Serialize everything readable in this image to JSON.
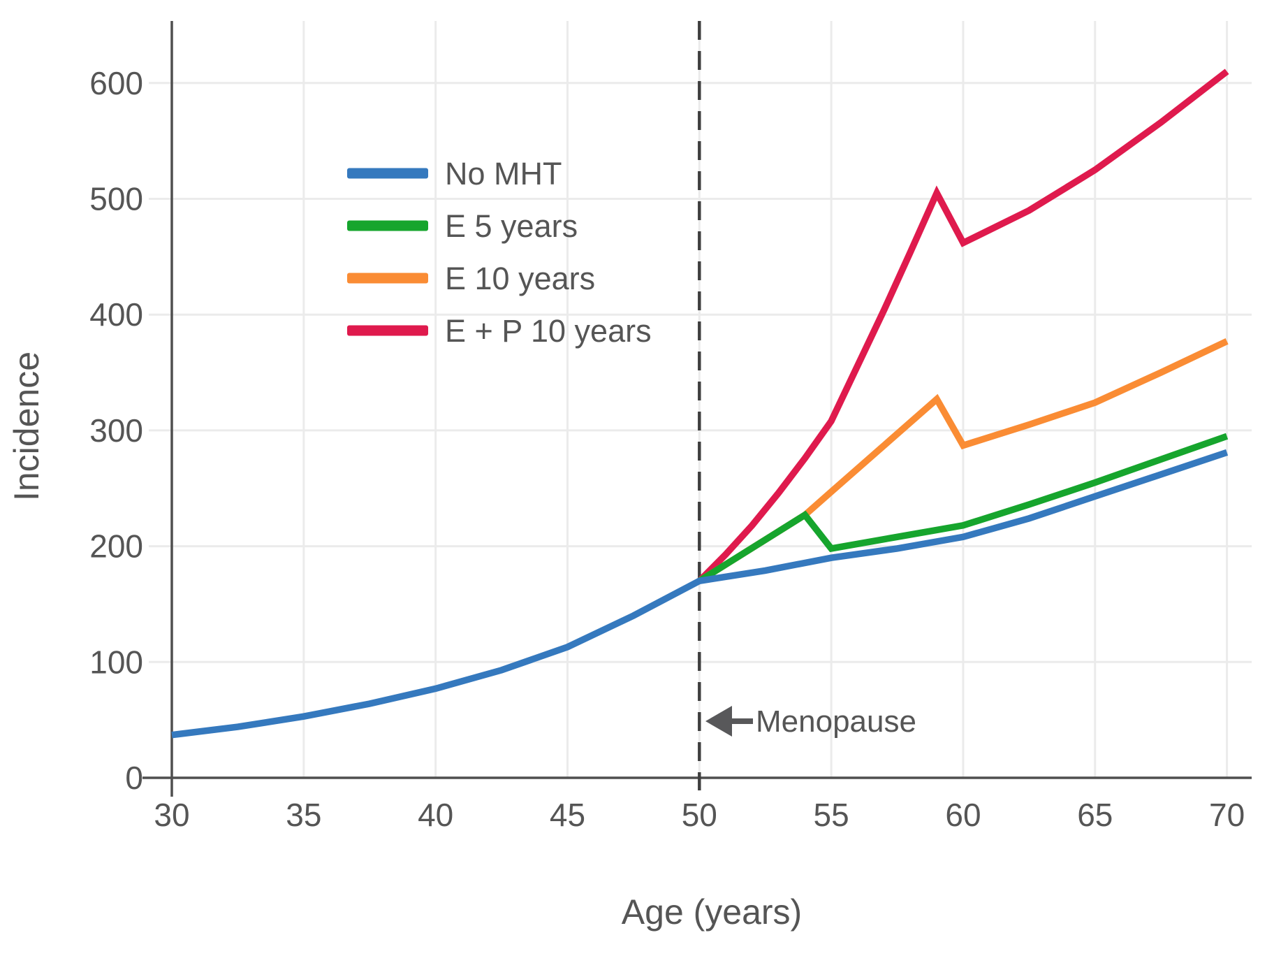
{
  "chart_data": {
    "type": "line",
    "title": "",
    "xlabel": "Age (years)",
    "ylabel": "Incidence",
    "x_ticks": [
      30,
      35,
      40,
      45,
      50,
      55,
      60,
      65,
      70
    ],
    "y_ticks": [
      0,
      100,
      200,
      300,
      400,
      500,
      600
    ],
    "xlim": [
      30,
      70
    ],
    "ylim": [
      0,
      654
    ],
    "grid": true,
    "legend_position": "upper-left",
    "annotation": {
      "label": "Menopause",
      "x": 50,
      "arrow": "left"
    },
    "series": [
      {
        "name": "No MHT",
        "color": "#3579be",
        "points": [
          [
            30,
            37
          ],
          [
            32.5,
            44
          ],
          [
            35,
            53
          ],
          [
            37.5,
            64
          ],
          [
            40,
            77
          ],
          [
            42.5,
            93
          ],
          [
            45,
            113
          ],
          [
            47.5,
            140
          ],
          [
            50,
            170
          ],
          [
            52.5,
            179
          ],
          [
            55,
            190
          ],
          [
            57.5,
            198
          ],
          [
            60,
            208
          ],
          [
            62.5,
            224
          ],
          [
            65,
            243
          ],
          [
            67.5,
            262
          ],
          [
            70,
            281
          ]
        ]
      },
      {
        "name": "E 5 years",
        "color": "#16a52d",
        "points": [
          [
            50,
            170
          ],
          [
            54,
            227
          ],
          [
            55,
            198
          ],
          [
            57.5,
            208
          ],
          [
            60,
            218
          ],
          [
            62.5,
            236
          ],
          [
            65,
            255
          ],
          [
            67.5,
            275
          ],
          [
            70,
            295
          ]
        ]
      },
      {
        "name": "E 10 years",
        "color": "#fa8c34",
        "points": [
          [
            50,
            170
          ],
          [
            54,
            227
          ],
          [
            55,
            247
          ],
          [
            57,
            287
          ],
          [
            59,
            327
          ],
          [
            60,
            287
          ],
          [
            62.5,
            305
          ],
          [
            65,
            324
          ],
          [
            67.5,
            350
          ],
          [
            70,
            377
          ]
        ]
      },
      {
        "name": "E + P 10 years",
        "color": "#df1a4d",
        "points": [
          [
            50,
            170
          ],
          [
            51,
            193
          ],
          [
            52,
            218
          ],
          [
            53,
            246
          ],
          [
            54,
            276
          ],
          [
            55,
            308
          ],
          [
            56,
            356
          ],
          [
            57,
            404
          ],
          [
            58,
            454
          ],
          [
            59,
            505
          ],
          [
            60,
            462
          ],
          [
            62.5,
            490
          ],
          [
            65,
            525
          ],
          [
            67.5,
            566
          ],
          [
            70,
            610
          ]
        ]
      }
    ]
  },
  "colors": {
    "axis_line": "#4f4f4f",
    "dashed_line": "#3f3f3f",
    "grid_line": "#ebebeb",
    "text": "#555555",
    "arrow": "#58585a",
    "background": "#ffffff"
  }
}
